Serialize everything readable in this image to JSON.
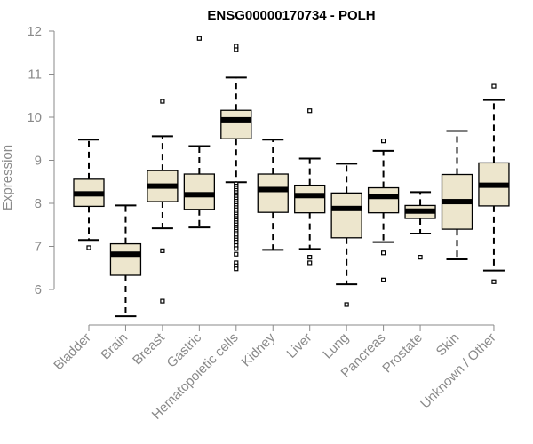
{
  "chart_data": {
    "type": "boxplot",
    "title": "ENSG00000170734 - POLH",
    "xlabel": "",
    "ylabel": "Expression",
    "ylim": [
      5.2,
      12.1
    ],
    "yticks": [
      6,
      7,
      8,
      9,
      10,
      11,
      12
    ],
    "box_fill": "#ede6cd",
    "line_color": "#000000",
    "axis_color": "#8a8a8a",
    "grid": false,
    "categories": [
      "Bladder",
      "Brain",
      "Breast",
      "Gastric",
      "Hematopoietic cells",
      "Kidney",
      "Liver",
      "Lung",
      "Pancreas",
      "Prostate",
      "Skin",
      "Unknown / Other"
    ],
    "boxes": [
      {
        "category": "Bladder",
        "whisker_low": 7.15,
        "q1": 7.93,
        "median": 8.22,
        "q3": 8.56,
        "whisker_high": 9.48,
        "outliers": [
          6.97
        ]
      },
      {
        "category": "Brain",
        "whisker_low": 5.38,
        "q1": 6.33,
        "median": 6.82,
        "q3": 7.06,
        "whisker_high": 7.95,
        "outliers": []
      },
      {
        "category": "Breast",
        "whisker_low": 7.42,
        "q1": 8.04,
        "median": 8.4,
        "q3": 8.76,
        "whisker_high": 9.56,
        "outliers": [
          10.37,
          6.9,
          5.73
        ]
      },
      {
        "category": "Gastric",
        "whisker_low": 7.44,
        "q1": 7.86,
        "median": 8.2,
        "q3": 8.68,
        "whisker_high": 9.33,
        "outliers": [
          11.83
        ]
      },
      {
        "category": "Hematopoietic cells",
        "whisker_low": 8.49,
        "q1": 9.5,
        "median": 9.94,
        "q3": 10.16,
        "whisker_high": 10.92,
        "outliers": [
          11.57,
          11.65,
          8.45,
          8.4,
          8.35,
          8.3,
          8.25,
          8.2,
          8.15,
          8.1,
          8.05,
          8.0,
          7.95,
          7.9,
          7.85,
          7.8,
          7.75,
          7.7,
          7.65,
          7.6,
          7.55,
          7.5,
          7.45,
          7.4,
          7.35,
          7.3,
          7.25,
          7.2,
          7.15,
          7.1,
          7.02,
          6.95,
          6.82,
          6.62,
          6.55,
          6.48
        ]
      },
      {
        "category": "Kidney",
        "whisker_low": 6.92,
        "q1": 7.79,
        "median": 8.32,
        "q3": 8.68,
        "whisker_high": 9.48,
        "outliers": []
      },
      {
        "category": "Liver",
        "whisker_low": 6.94,
        "q1": 7.78,
        "median": 8.18,
        "q3": 8.42,
        "whisker_high": 9.04,
        "outliers": [
          10.15,
          6.75,
          6.62
        ]
      },
      {
        "category": "Lung",
        "whisker_low": 6.12,
        "q1": 7.2,
        "median": 7.88,
        "q3": 8.24,
        "whisker_high": 8.92,
        "outliers": [
          5.65
        ]
      },
      {
        "category": "Pancreas",
        "whisker_low": 7.1,
        "q1": 7.78,
        "median": 8.16,
        "q3": 8.36,
        "whisker_high": 9.22,
        "outliers": [
          9.45,
          6.85,
          6.22
        ]
      },
      {
        "category": "Prostate",
        "whisker_low": 7.3,
        "q1": 7.65,
        "median": 7.82,
        "q3": 7.95,
        "whisker_high": 8.26,
        "outliers": [
          6.75
        ]
      },
      {
        "category": "Skin",
        "whisker_low": 6.7,
        "q1": 7.4,
        "median": 8.04,
        "q3": 8.67,
        "whisker_high": 9.68,
        "outliers": []
      },
      {
        "category": "Unknown / Other",
        "whisker_low": 6.44,
        "q1": 7.94,
        "median": 8.42,
        "q3": 8.94,
        "whisker_high": 10.4,
        "outliers": [
          10.72,
          6.18
        ]
      }
    ]
  }
}
